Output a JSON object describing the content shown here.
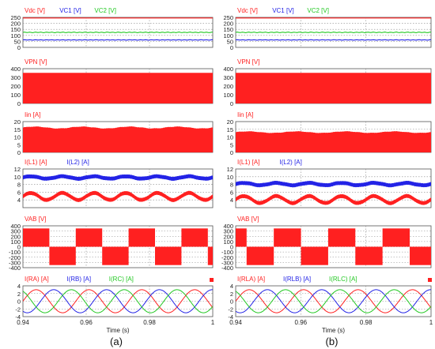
{
  "colors": {
    "red": "#ff2020",
    "blue": "#2323e6",
    "green": "#23c823",
    "grid": "#8a8a8a",
    "tick": "#333333"
  },
  "chart_data": [
    {
      "label": "(a)",
      "xlabel": "Time (s)",
      "xlim": [
        0.94,
        1.0
      ],
      "xticks": [
        0.94,
        0.96,
        0.98,
        1
      ],
      "xtick_labels": [
        "0.94",
        "0.96",
        "0.98",
        "1"
      ],
      "panels": [
        {
          "type": "line",
          "ylim": [
            0,
            250
          ],
          "yticks": [
            0,
            50,
            100,
            150,
            200,
            250
          ],
          "ytick_labels": [
            "0",
            "50",
            "100",
            "150",
            "200",
            "250"
          ],
          "series": [
            {
              "name": "Vdc [V]",
              "color": "red",
              "kind": "constant",
              "value": 250
            },
            {
              "name": "VC1 [V]",
              "color": "blue",
              "kind": "ripple",
              "mean": 62,
              "amp": 3
            },
            {
              "name": "VC2 [V]",
              "color": "green",
              "kind": "ripple",
              "mean": 125,
              "amp": 4
            }
          ]
        },
        {
          "type": "area",
          "ylim": [
            0,
            400
          ],
          "yticks": [
            0,
            100,
            200,
            300,
            400
          ],
          "ytick_labels": [
            "0",
            "100",
            "200",
            "300",
            "400"
          ],
          "series": [
            {
              "name": "VPN [V]",
              "color": "red",
              "kind": "switching_band",
              "low": 0,
              "high": 350
            }
          ]
        },
        {
          "type": "area",
          "ylim": [
            0,
            20
          ],
          "yticks": [
            0,
            5,
            10,
            15,
            20
          ],
          "ytick_labels": [
            "0",
            "5",
            "10",
            "15",
            "20"
          ],
          "series": [
            {
              "name": "Iin [A]",
              "color": "red",
              "kind": "switching_band",
              "low": 0,
              "high": 16,
              "high_amp": 0.6
            }
          ]
        },
        {
          "type": "line",
          "ylim": [
            2,
            12
          ],
          "yticks": [
            2,
            4,
            6,
            8,
            10,
            12
          ],
          "ytick_labels": [
            "",
            "4",
            "6",
            "8",
            "10",
            "12"
          ],
          "series": [
            {
              "name": "I(L1) [A]",
              "color": "red",
              "kind": "ripple_band",
              "mean": 4.9,
              "amp": 0.9,
              "width": 0.9,
              "cycles": 6
            },
            {
              "name": "I(L2) [A]",
              "color": "blue",
              "kind": "ripple_band",
              "mean": 9.8,
              "amp": 0.3,
              "width": 0.9,
              "cycles": 6
            }
          ]
        },
        {
          "type": "area",
          "ylim": [
            -400,
            400
          ],
          "yticks": [
            -400,
            -200,
            0,
            200,
            400
          ],
          "ytick_labels": [
            "-400",
            "-200",
            "0",
            "200",
            "400"
          ],
          "minor_yticks": [
            -300,
            -100,
            100,
            300
          ],
          "minor_ytick_labels": [
            "-300",
            "-100",
            "100",
            "300"
          ],
          "series": [
            {
              "name": "VAB [V]",
              "color": "red",
              "kind": "square_band",
              "amplitude": 350,
              "period": 0.0167,
              "phase": 0.0
            }
          ]
        },
        {
          "type": "line",
          "ylim": [
            -4,
            4
          ],
          "yticks": [
            -4,
            -2,
            0,
            2,
            4
          ],
          "ytick_labels": [
            "-4",
            "-2",
            "0",
            "2",
            "4"
          ],
          "series": [
            {
              "name": "I(RA) [A]",
              "color": "red",
              "kind": "sine",
              "amplitude": 3,
              "period": 0.0167,
              "phase_deg": 0
            },
            {
              "name": "I(RB) [A]",
              "color": "blue",
              "kind": "sine",
              "amplitude": 3,
              "period": 0.0167,
              "phase_deg": -120
            },
            {
              "name": "I(RC) [A]",
              "color": "green",
              "kind": "sine",
              "amplitude": 3,
              "period": 0.0167,
              "phase_deg": 120
            }
          ]
        }
      ]
    },
    {
      "label": "(b)",
      "xlabel": "Time (s)",
      "xlim": [
        0.94,
        1.0
      ],
      "xticks": [
        0.94,
        0.96,
        0.98,
        1
      ],
      "xtick_labels": [
        "0.94",
        "0.96",
        "0.98",
        "1"
      ],
      "panels": [
        {
          "type": "line",
          "ylim": [
            0,
            250
          ],
          "yticks": [
            0,
            50,
            100,
            150,
            200,
            250
          ],
          "ytick_labels": [
            "0",
            "50",
            "100",
            "150",
            "200",
            "250"
          ],
          "series": [
            {
              "name": "Vdc [V]",
              "color": "red",
              "kind": "constant",
              "value": 250
            },
            {
              "name": "VC1 [V]",
              "color": "blue",
              "kind": "ripple",
              "mean": 62,
              "amp": 3
            },
            {
              "name": "VC2 [V]",
              "color": "green",
              "kind": "ripple",
              "mean": 125,
              "amp": 4
            }
          ]
        },
        {
          "type": "area",
          "ylim": [
            0,
            400
          ],
          "yticks": [
            0,
            100,
            200,
            300,
            400
          ],
          "ytick_labels": [
            "0",
            "100",
            "200",
            "300",
            "400"
          ],
          "series": [
            {
              "name": "VPN [V]",
              "color": "red",
              "kind": "switching_band",
              "low": 0,
              "high": 350
            }
          ]
        },
        {
          "type": "area",
          "ylim": [
            0,
            20
          ],
          "yticks": [
            0,
            5,
            10,
            15,
            20
          ],
          "ytick_labels": [
            "0",
            "5",
            "10",
            "15",
            "20"
          ],
          "series": [
            {
              "name": "Iin [A]",
              "color": "red",
              "kind": "switching_band",
              "low": 0,
              "high": 13,
              "high_amp": 0.5
            }
          ]
        },
        {
          "type": "line",
          "ylim": [
            2,
            12
          ],
          "yticks": [
            2,
            4,
            6,
            8,
            10,
            12
          ],
          "ytick_labels": [
            "",
            "4",
            "6",
            "8",
            "10",
            "12"
          ],
          "series": [
            {
              "name": "I(L1) [A]",
              "color": "red",
              "kind": "ripple_band",
              "mean": 4.1,
              "amp": 0.9,
              "width": 0.9,
              "cycles": 6
            },
            {
              "name": "I(L2) [A]",
              "color": "blue",
              "kind": "ripple_band",
              "mean": 8.1,
              "amp": 0.3,
              "width": 0.9,
              "cycles": 6
            }
          ]
        },
        {
          "type": "area",
          "ylim": [
            -400,
            400
          ],
          "yticks": [
            -400,
            -200,
            0,
            200,
            400
          ],
          "ytick_labels": [
            "-400",
            "-200",
            "0",
            "200",
            "400"
          ],
          "minor_yticks": [
            -300,
            -100,
            100,
            300
          ],
          "minor_ytick_labels": [
            "-300",
            "-100",
            "100",
            "300"
          ],
          "series": [
            {
              "name": "VAB [V]",
              "color": "red",
              "kind": "square_band",
              "amplitude": 350,
              "period": 0.0167,
              "phase": 0.005
            }
          ]
        },
        {
          "type": "line",
          "ylim": [
            -4,
            4
          ],
          "yticks": [
            -4,
            -2,
            0,
            2,
            4
          ],
          "ytick_labels": [
            "-4",
            "-2",
            "0",
            "2",
            "4"
          ],
          "series": [
            {
              "name": "I(RLA) [A]",
              "color": "red",
              "kind": "sine",
              "amplitude": 3,
              "period": 0.0167,
              "phase_deg": 0
            },
            {
              "name": "I(RLB) [A]",
              "color": "blue",
              "kind": "sine",
              "amplitude": 3,
              "period": 0.0167,
              "phase_deg": -120
            },
            {
              "name": "I(RLC) [A]",
              "color": "green",
              "kind": "sine",
              "amplitude": 3,
              "period": 0.0167,
              "phase_deg": 120
            }
          ]
        }
      ]
    }
  ]
}
